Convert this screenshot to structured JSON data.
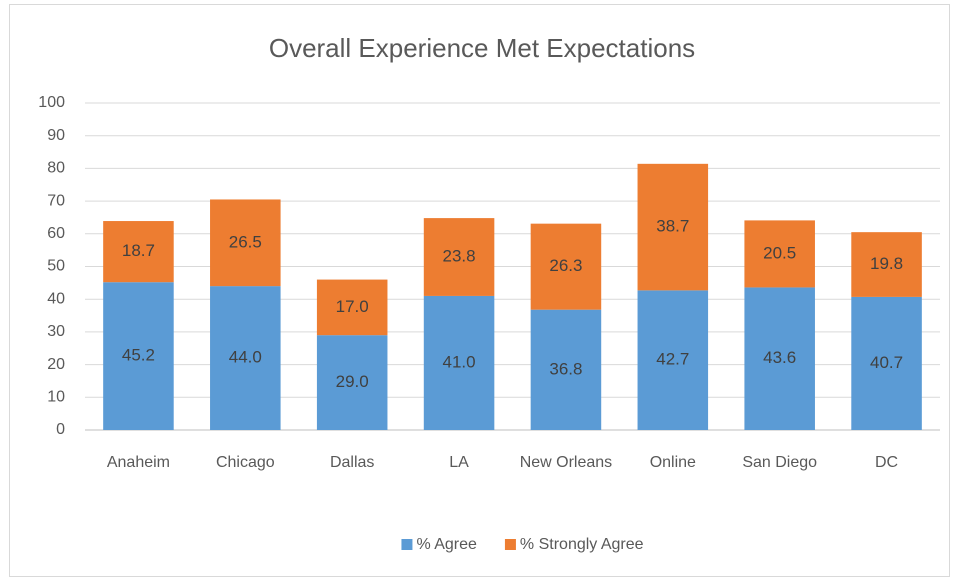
{
  "chart_data": {
    "type": "stacked_bar",
    "title": "Overall Experience Met Expectations",
    "categories": [
      "Anaheim",
      "Chicago",
      "Dallas",
      "LA",
      "New Orleans",
      "Online",
      "San Diego",
      "DC"
    ],
    "series": [
      {
        "name": "% Agree",
        "color": "#5b9bd5",
        "values": [
          45.2,
          44.0,
          29.0,
          41.0,
          36.8,
          42.7,
          43.6,
          40.7
        ],
        "value_labels": [
          "45.2",
          "44.0",
          "29.0",
          "41.0",
          "36.8",
          "42.7",
          "43.6",
          "40.7"
        ]
      },
      {
        "name": "% Strongly Agree",
        "color": "#ed7d31",
        "values": [
          18.7,
          26.5,
          17.0,
          23.8,
          26.3,
          38.7,
          20.5,
          19.8
        ],
        "value_labels": [
          "18.7",
          "26.5",
          "17.0",
          "23.8",
          "26.3",
          "38.7",
          "20.5",
          "19.8"
        ]
      }
    ],
    "ylim": [
      0,
      100
    ],
    "yticks": [
      0,
      10,
      20,
      30,
      40,
      50,
      60,
      70,
      80,
      90,
      100
    ],
    "grid": true,
    "legend": "bottom"
  }
}
